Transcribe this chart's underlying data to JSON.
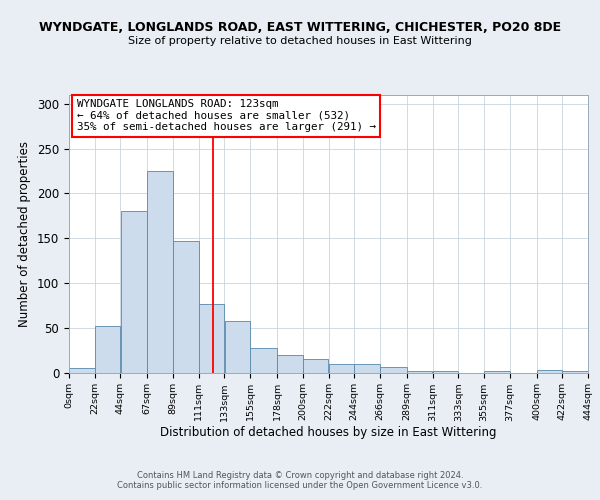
{
  "title_line1": "WYNDGATE, LONGLANDS ROAD, EAST WITTERING, CHICHESTER, PO20 8DE",
  "title_line2": "Size of property relative to detached houses in East Wittering",
  "xlabel": "Distribution of detached houses by size in East Wittering",
  "ylabel": "Number of detached properties",
  "bin_labels": [
    "0sqm",
    "22sqm",
    "44sqm",
    "67sqm",
    "89sqm",
    "111sqm",
    "133sqm",
    "155sqm",
    "178sqm",
    "200sqm",
    "222sqm",
    "244sqm",
    "266sqm",
    "289sqm",
    "311sqm",
    "333sqm",
    "355sqm",
    "377sqm",
    "400sqm",
    "422sqm",
    "444sqm"
  ],
  "bar_heights": [
    5,
    52,
    180,
    225,
    147,
    77,
    57,
    27,
    20,
    15,
    10,
    10,
    6,
    2,
    2,
    0,
    2,
    0,
    3,
    2
  ],
  "bar_left_edges": [
    0,
    22,
    44,
    67,
    89,
    111,
    133,
    155,
    178,
    200,
    222,
    244,
    266,
    289,
    311,
    333,
    355,
    377,
    400,
    422
  ],
  "bar_widths": [
    22,
    22,
    23,
    22,
    22,
    22,
    22,
    23,
    22,
    22,
    22,
    22,
    23,
    22,
    22,
    22,
    22,
    23,
    22,
    22
  ],
  "bar_color": "#ccdcec",
  "bar_edge_color": "#5588aa",
  "vline_x": 123,
  "vline_color": "red",
  "annotation_title": "WYNDGATE LONGLANDS ROAD: 123sqm",
  "annotation_line2": "← 64% of detached houses are smaller (532)",
  "annotation_line3": "35% of semi-detached houses are larger (291) →",
  "annotation_box_color": "red",
  "ylim": [
    0,
    310
  ],
  "yticks": [
    0,
    50,
    100,
    150,
    200,
    250,
    300
  ],
  "footer_line1": "Contains HM Land Registry data © Crown copyright and database right 2024.",
  "footer_line2": "Contains public sector information licensed under the Open Government Licence v3.0.",
  "bg_color": "#e8eef4",
  "plot_bg_color": "#ffffff",
  "grid_color": "#c8d4de"
}
